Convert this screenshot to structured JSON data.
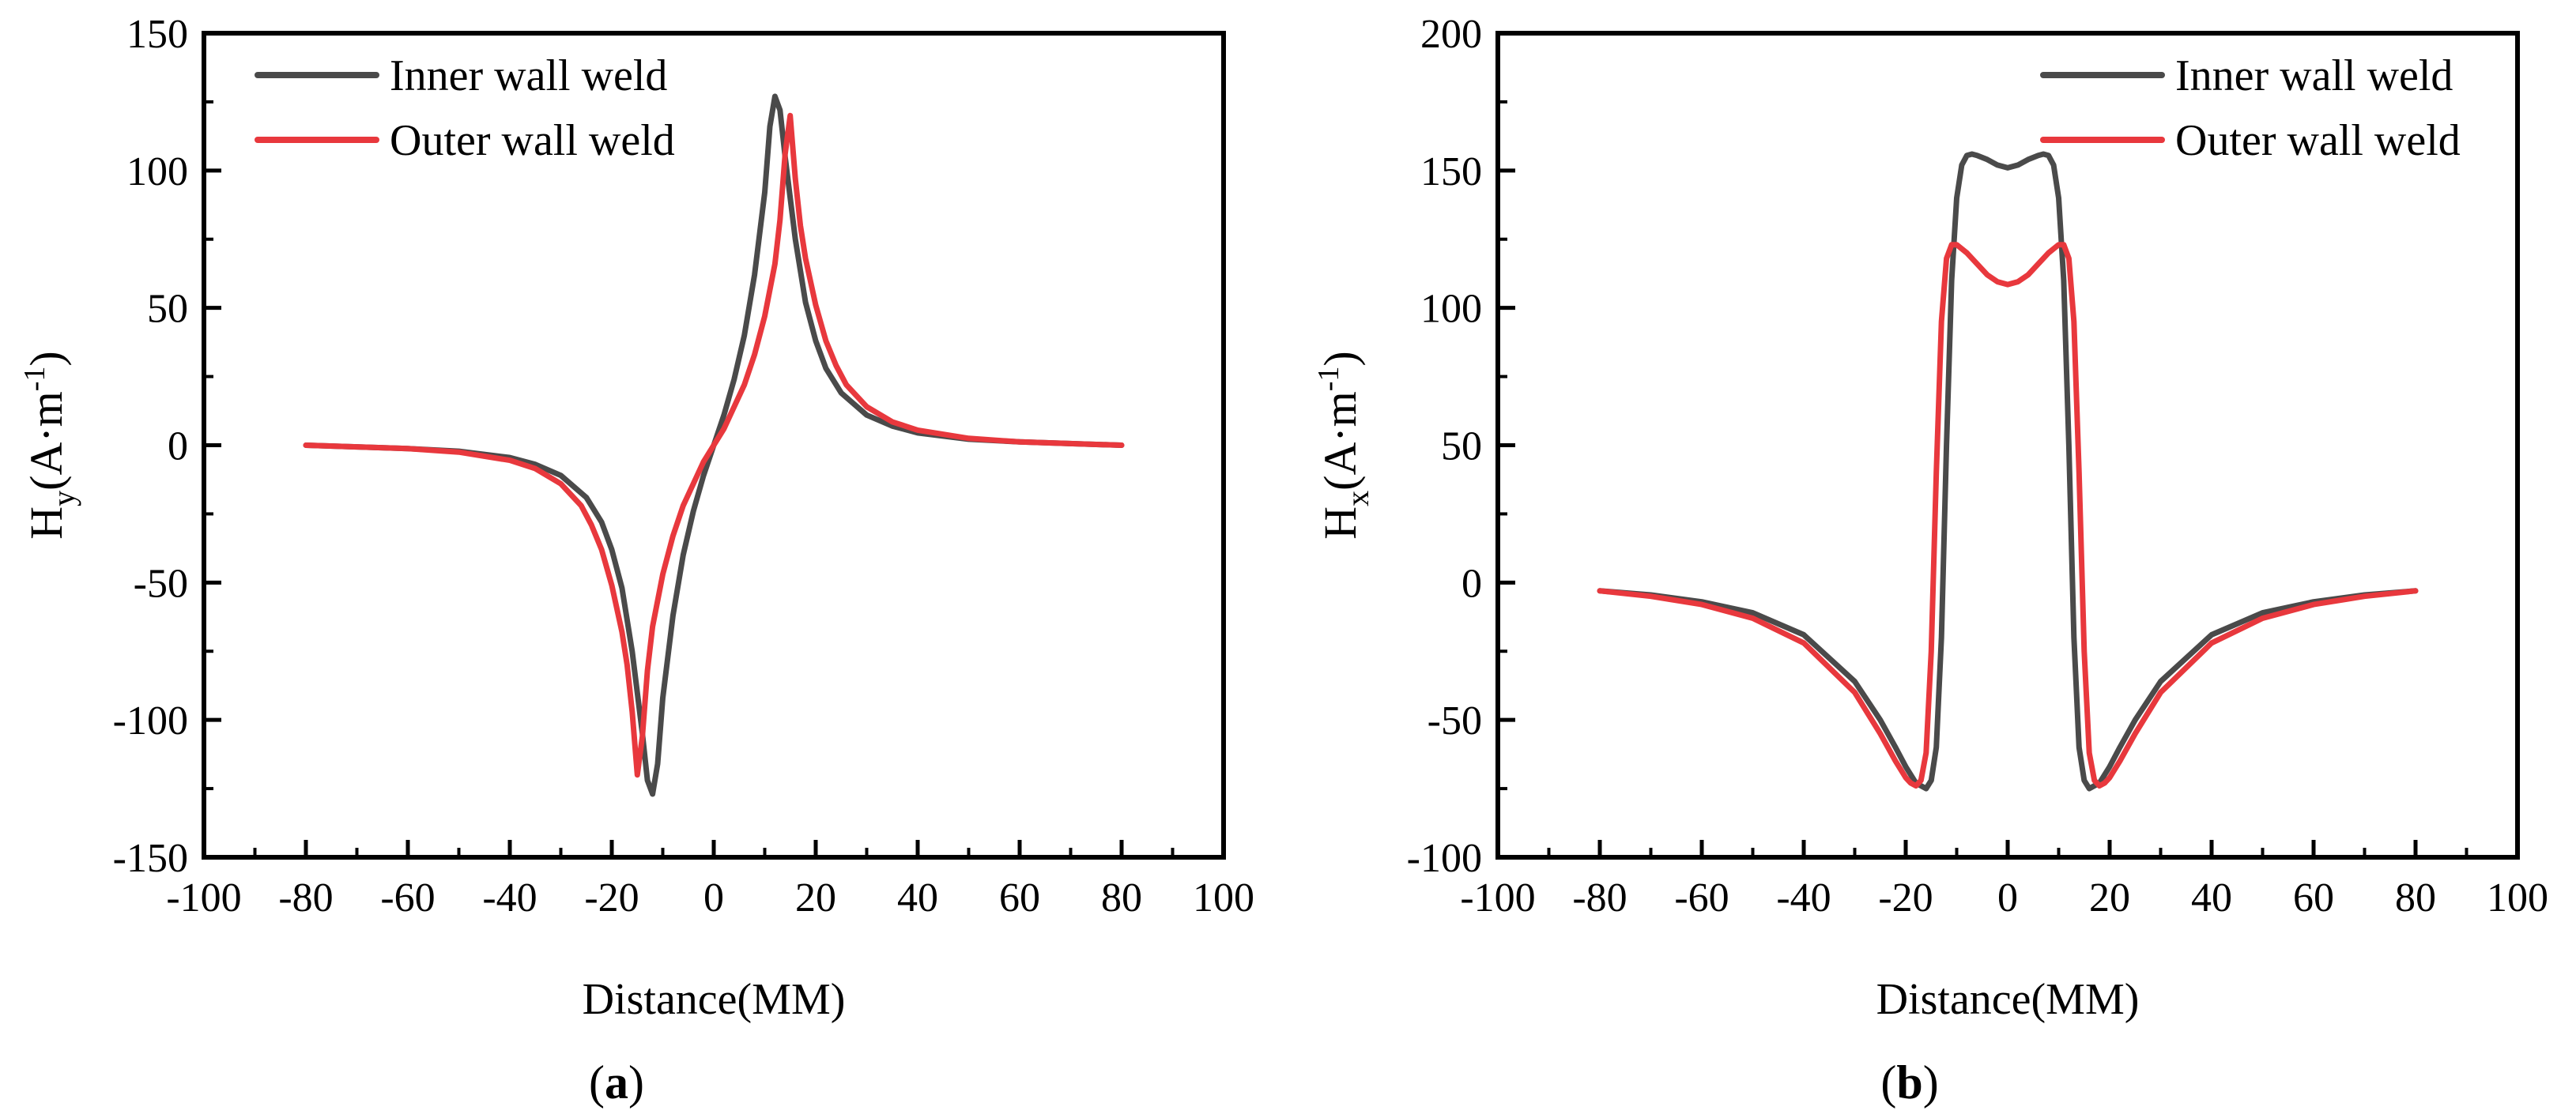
{
  "colors": {
    "inner": "#4a4a4a",
    "outer": "#e8383d",
    "axis": "#000000"
  },
  "chart_data": [
    {
      "id": "a",
      "type": "line",
      "panel_label": "a",
      "title": "",
      "xlabel": "Distance(MM)",
      "ylabel_main": "H",
      "ylabel_sub": "y",
      "ylabel_unit": "(A·m",
      "ylabel_sup": "-1",
      "ylabel_close": ")",
      "xlim": [
        -100,
        100
      ],
      "ylim": [
        -150,
        150
      ],
      "xticks": [
        -100,
        -80,
        -60,
        -40,
        -20,
        0,
        20,
        40,
        60,
        80,
        100
      ],
      "yticks": [
        -150,
        -100,
        -50,
        0,
        50,
        100,
        150
      ],
      "legend_position": "top-left",
      "grid": false,
      "series": [
        {
          "name": "Inner wall weld",
          "color": "#4a4a4a",
          "x": [
            -80,
            -60,
            -50,
            -40,
            -35,
            -30,
            -25,
            -22,
            -20,
            -18,
            -16,
            -14,
            -13,
            -12,
            -11,
            -10,
            -8,
            -6,
            -4,
            -2,
            0,
            2,
            4,
            6,
            8,
            10,
            11,
            12,
            13,
            14,
            16,
            18,
            20,
            22,
            25,
            30,
            35,
            40,
            50,
            60,
            80
          ],
          "values": [
            0,
            -1.2,
            -2.2,
            -4.5,
            -7,
            -11,
            -19,
            -28,
            -38,
            -52,
            -75,
            -105,
            -122,
            -127,
            -116,
            -92,
            -62,
            -40,
            -24,
            -11,
            0,
            11,
            24,
            40,
            62,
            92,
            116,
            127,
            122,
            105,
            75,
            52,
            38,
            28,
            19,
            11,
            7,
            4.5,
            2.2,
            1.2,
            0
          ]
        },
        {
          "name": "Outer wall weld",
          "color": "#e8383d",
          "x": [
            -80,
            -60,
            -50,
            -40,
            -35,
            -30,
            -26,
            -24,
            -22,
            -20,
            -18,
            -17,
            -16,
            -15,
            -14,
            -13,
            -12,
            -10,
            -8,
            -6,
            -4,
            -2,
            0,
            2,
            4,
            6,
            8,
            10,
            12,
            13,
            14,
            15,
            16,
            17,
            18,
            20,
            22,
            24,
            26,
            30,
            35,
            40,
            50,
            60,
            80
          ],
          "values": [
            0,
            -1.2,
            -2.5,
            -5.5,
            -8.5,
            -14,
            -22,
            -29,
            -38,
            -51,
            -68,
            -80,
            -97,
            -120,
            -106,
            -82,
            -66,
            -47,
            -33,
            -22,
            -14,
            -6,
            0,
            6,
            14,
            22,
            33,
            47,
            66,
            82,
            106,
            120,
            97,
            80,
            68,
            51,
            38,
            29,
            22,
            14,
            8.5,
            5.5,
            2.5,
            1.2,
            0
          ]
        }
      ]
    },
    {
      "id": "b",
      "type": "line",
      "panel_label": "b",
      "title": "",
      "xlabel": "Distance(MM)",
      "ylabel_main": "H",
      "ylabel_sub": "x",
      "ylabel_unit": "(A·m",
      "ylabel_sup": "-1",
      "ylabel_close": ")",
      "xlim": [
        -100,
        100
      ],
      "ylim": [
        -100,
        200
      ],
      "xticks": [
        -100,
        -80,
        -60,
        -40,
        -20,
        0,
        20,
        40,
        60,
        80,
        100
      ],
      "yticks": [
        -100,
        -50,
        0,
        50,
        100,
        150,
        200
      ],
      "legend_position": "top-right",
      "grid": false,
      "series": [
        {
          "name": "Inner wall weld",
          "color": "#4a4a4a",
          "x": [
            -80,
            -70,
            -60,
            -50,
            -40,
            -30,
            -25,
            -22,
            -20,
            -18,
            -16,
            -15,
            -14,
            -13,
            -12,
            -11,
            -10,
            -9,
            -8,
            -7,
            -6,
            -4,
            -2,
            0,
            2,
            4,
            6,
            7,
            8,
            9,
            10,
            11,
            12,
            13,
            14,
            15,
            16,
            18,
            20,
            22,
            25,
            30,
            40,
            50,
            60,
            70,
            80
          ],
          "values": [
            -3,
            -4.5,
            -7,
            -11,
            -19,
            -36,
            -50,
            -60,
            -67,
            -73,
            -75,
            -72,
            -60,
            -20,
            50,
            110,
            140,
            152,
            155.5,
            156,
            155.5,
            154,
            152,
            151,
            152,
            154,
            155.5,
            156,
            155.5,
            152,
            140,
            110,
            50,
            -20,
            -60,
            -72,
            -75,
            -73,
            -67,
            -60,
            -50,
            -36,
            -19,
            -11,
            -7,
            -4.5,
            -3
          ]
        },
        {
          "name": "Outer wall weld",
          "color": "#e8383d",
          "x": [
            -80,
            -70,
            -60,
            -50,
            -40,
            -30,
            -25,
            -22,
            -20,
            -19,
            -18,
            -17,
            -16,
            -15,
            -14,
            -13,
            -12,
            -11,
            -10,
            -8,
            -6,
            -4,
            -2,
            0,
            2,
            4,
            6,
            8,
            10,
            11,
            12,
            13,
            14,
            15,
            16,
            17,
            18,
            19,
            20,
            22,
            25,
            30,
            40,
            50,
            60,
            70,
            80
          ],
          "values": [
            -3,
            -5,
            -8,
            -13,
            -22,
            -40,
            -55,
            -65,
            -71,
            -73,
            -74,
            -72,
            -62,
            -25,
            40,
            95,
            118,
            123,
            123,
            120,
            116,
            112,
            109.5,
            108.5,
            109.5,
            112,
            116,
            120,
            123,
            123,
            118,
            95,
            40,
            -25,
            -62,
            -72,
            -74,
            -73,
            -71,
            -65,
            -55,
            -40,
            -22,
            -13,
            -8,
            -5,
            -3
          ]
        }
      ]
    }
  ]
}
